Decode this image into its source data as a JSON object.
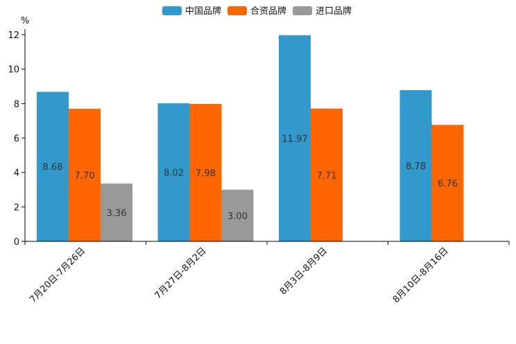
{
  "chart_data": {
    "type": "bar",
    "title": "",
    "xlabel": "",
    "ylabel": "%",
    "ylim": [
      0,
      12
    ],
    "yticks": [
      0,
      2,
      4,
      6,
      8,
      10,
      12
    ],
    "grid": false,
    "legend_position": "top-center",
    "categories": [
      "7月20日-7月26日",
      "7月27日-8月2日",
      "8月3日-8月9日",
      "8月10日-8月16日"
    ],
    "series": [
      {
        "name": "中国品牌",
        "color": "#3399cc",
        "values": [
          8.68,
          8.02,
          11.97,
          8.78
        ],
        "labels": [
          "8.68",
          "8.02",
          "11.97",
          "8.78"
        ]
      },
      {
        "name": "合资品牌",
        "color": "#ff6600",
        "values": [
          7.7,
          7.98,
          7.71,
          6.76
        ],
        "labels": [
          "7.70",
          "7.98",
          "7.71",
          "6.76"
        ]
      },
      {
        "name": "进口品牌",
        "color": "#999999",
        "values": [
          3.36,
          3.0,
          null,
          null
        ],
        "labels": [
          "3.36",
          "3.00",
          null,
          null
        ]
      }
    ]
  }
}
